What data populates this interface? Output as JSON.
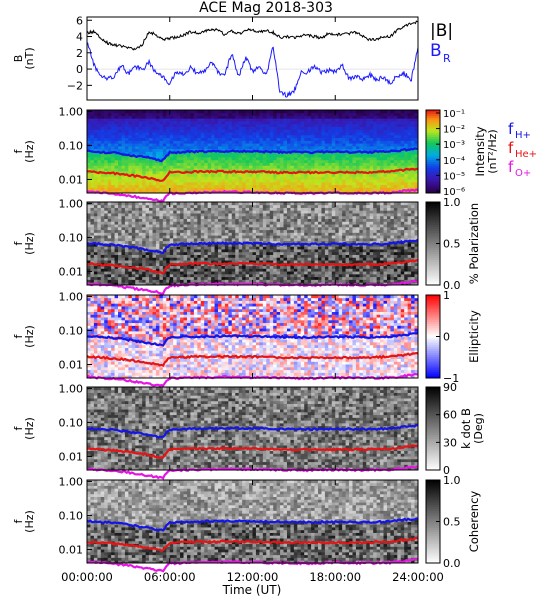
{
  "title": "ACE Mag 2018-303",
  "xlabel": "Time (UT)",
  "x_ticks": [
    "00:00:00",
    "06:00:00",
    "12:00:00",
    "18:00:00",
    "24:00:00"
  ],
  "x_range_hours": [
    0,
    24
  ],
  "colors": {
    "b_total": "#000000",
    "b_r": "#1a1aff",
    "f_h": "#1515e6",
    "f_he": "#e61515",
    "f_o": "#e615e6"
  },
  "chart_data": [
    {
      "type": "line",
      "panel": "b-field",
      "ylabel_top": "B",
      "ylabel_bottom": "(nT)",
      "ylim": [
        -3.8,
        6.4
      ],
      "y_ticks": [
        "6",
        "4",
        "2",
        "0",
        "−2"
      ],
      "y_tick_values": [
        6,
        4,
        2,
        0,
        -2
      ],
      "x_hours": [
        0,
        0.5,
        1,
        1.5,
        2,
        2.5,
        3,
        3.5,
        4,
        4.5,
        5,
        5.5,
        6,
        6.5,
        7,
        7.5,
        8,
        8.5,
        9,
        9.5,
        10,
        10.5,
        11,
        11.5,
        12,
        12.5,
        13,
        13.5,
        14,
        14.5,
        15,
        15.5,
        16,
        16.5,
        17,
        17.5,
        18,
        18.5,
        19,
        19.5,
        20,
        20.5,
        21,
        21.5,
        22,
        22.5,
        23,
        23.5,
        24
      ],
      "series": [
        {
          "name": "|B|",
          "label": "|B|",
          "color": "#000000",
          "values": [
            4.5,
            4.6,
            3.8,
            3.2,
            3.0,
            2.8,
            2.6,
            2.5,
            3.0,
            4.6,
            4.2,
            3.6,
            3.8,
            3.9,
            4.2,
            4.6,
            4.4,
            4.7,
            4.9,
            4.8,
            4.2,
            4.7,
            4.3,
            4.8,
            4.8,
            4.6,
            4.7,
            4.5,
            3.9,
            4.0,
            3.9,
            4.1,
            4.2,
            4.0,
            3.8,
            4.4,
            4.3,
            4.2,
            4.4,
            4.5,
            4.1,
            3.6,
            3.7,
            3.9,
            4.0,
            4.8,
            5.2,
            5.6,
            5.8
          ]
        },
        {
          "name": "B_R",
          "label": "B",
          "label_sub": "R",
          "color": "#1a1aff",
          "values": [
            3.5,
            0.5,
            -0.8,
            -1.2,
            -1.0,
            0.5,
            -0.6,
            0.4,
            -0.2,
            0.9,
            -0.4,
            -0.9,
            -1.8,
            -0.3,
            -0.6,
            0.2,
            -0.5,
            -0.3,
            1.0,
            -0.4,
            -0.6,
            2.0,
            -1.0,
            1.5,
            -0.3,
            0.2,
            -0.8,
            2.8,
            -3.0,
            -3.2,
            -2.8,
            -0.5,
            -0.3,
            0.3,
            -0.4,
            -0.2,
            -0.3,
            0.5,
            -1.2,
            -0.8,
            -1.2,
            -0.7,
            -1.4,
            -1.0,
            -1.8,
            -0.8,
            -0.5,
            -1.4,
            2.5
          ]
        }
      ]
    },
    {
      "type": "heatmap",
      "panel": "intensity",
      "ylabel_top": "f",
      "ylabel_bottom": "(Hz)",
      "y_scale": "log",
      "ylim": [
        0.004,
        1.1
      ],
      "y_ticks": [
        "1.00",
        "0.10",
        "0.01"
      ],
      "y_tick_values": [
        1,
        0.1,
        0.01
      ],
      "colorbar_title": "Intensity",
      "colorbar_units": "(nT²/Hz)",
      "colorbar_scale": "log",
      "colorbar_range": [
        1e-06,
        0.1
      ],
      "colorbar_ticks": [
        "10⁻¹",
        "10⁻²",
        "10⁻³",
        "10⁻⁴",
        "10⁻⁵",
        "10⁻⁶"
      ],
      "colorbar_tick_values": [
        0.1,
        0.01,
        0.001,
        0.0001,
        1e-05,
        1e-06
      ],
      "legend": [
        {
          "label": "f",
          "sub": "H+",
          "color": "#1515e6"
        },
        {
          "label": "f",
          "sub": "He+",
          "color": "#e61515"
        },
        {
          "label": "f",
          "sub": "O+",
          "color": "#e615e6"
        }
      ]
    },
    {
      "type": "heatmap",
      "panel": "polarization",
      "ylabel_top": "f",
      "ylabel_bottom": "(Hz)",
      "y_ticks": [
        "1.00",
        "0.10",
        "0.01"
      ],
      "y_tick_values": [
        1,
        0.1,
        0.01
      ],
      "colorbar_title": "% Polarization",
      "colorbar_range": [
        0,
        1
      ],
      "colorbar_ticks": [
        "1.0",
        "0.5",
        "0.0"
      ],
      "colorbar_tick_values": [
        1,
        0.5,
        0
      ]
    },
    {
      "type": "heatmap",
      "panel": "ellipticity",
      "ylabel_top": "f",
      "ylabel_bottom": "(Hz)",
      "y_ticks": [
        "1.00",
        "0.10",
        "0.01"
      ],
      "y_tick_values": [
        1,
        0.1,
        0.01
      ],
      "colorbar_title": "Ellipticity",
      "colorbar_range": [
        -1,
        1
      ],
      "colorbar_ticks": [
        "1",
        "0",
        "−1"
      ],
      "colorbar_tick_values": [
        1,
        0,
        -1
      ]
    },
    {
      "type": "heatmap",
      "panel": "k-dot-b",
      "ylabel_top": "f",
      "ylabel_bottom": "(Hz)",
      "y_ticks": [
        "1.00",
        "0.10",
        "0.01"
      ],
      "y_tick_values": [
        1,
        0.1,
        0.01
      ],
      "colorbar_title": "k dot B",
      "colorbar_units": "(Deg)",
      "colorbar_range": [
        0,
        90
      ],
      "colorbar_ticks": [
        "90",
        "60",
        "30",
        "0"
      ],
      "colorbar_tick_values": [
        90,
        60,
        30,
        0
      ]
    },
    {
      "type": "heatmap",
      "panel": "coherency",
      "ylabel_top": "f",
      "ylabel_bottom": "(Hz)",
      "y_ticks": [
        "1.00",
        "0.10",
        "0.01"
      ],
      "y_tick_values": [
        1,
        0.1,
        0.01
      ],
      "colorbar_title": "Coherency",
      "colorbar_range": [
        0,
        1
      ],
      "colorbar_ticks": [
        "1.0",
        "0.5",
        "0.0"
      ],
      "colorbar_tick_values": [
        1,
        0.5,
        0
      ]
    }
  ],
  "gyrofrequency_hz": {
    "x_hours": [
      0,
      2,
      4,
      5.5,
      6,
      8,
      10,
      12,
      14,
      16,
      18,
      20,
      22,
      24
    ],
    "H+": [
      0.068,
      0.06,
      0.046,
      0.036,
      0.062,
      0.066,
      0.068,
      0.067,
      0.064,
      0.063,
      0.065,
      0.063,
      0.066,
      0.082
    ],
    "He+": [
      0.017,
      0.015,
      0.012,
      0.009,
      0.016,
      0.017,
      0.017,
      0.017,
      0.016,
      0.016,
      0.016,
      0.016,
      0.017,
      0.021
    ],
    "O+": [
      0.0043,
      0.0038,
      0.0029,
      0.0023,
      0.0039,
      0.0041,
      0.0043,
      0.0042,
      0.004,
      0.0039,
      0.0041,
      0.004,
      0.0041,
      0.0051
    ]
  }
}
